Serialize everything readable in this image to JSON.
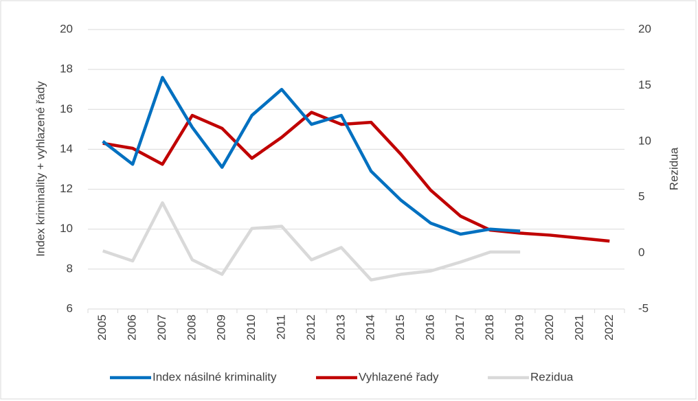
{
  "chart_data": {
    "type": "line",
    "categories": [
      "2005",
      "2006",
      "2007",
      "2008",
      "2009",
      "2010",
      "2011",
      "2012",
      "2013",
      "2014",
      "2015",
      "2016",
      "2017",
      "2018",
      "2019",
      "2020",
      "2021",
      "2022"
    ],
    "series": [
      {
        "name": "Index násilné kriminality",
        "color": "#0070c0",
        "values": [
          14.4,
          13.25,
          17.6,
          15.1,
          13.1,
          15.7,
          17.0,
          15.25,
          15.7,
          12.9,
          11.45,
          10.3,
          9.75,
          10.0,
          9.9,
          null,
          null,
          null
        ]
      },
      {
        "name": "Vyhlazené řady",
        "color": "#c00000",
        "values": [
          14.3,
          14.05,
          13.25,
          15.7,
          15.05,
          13.55,
          14.6,
          15.85,
          15.25,
          15.35,
          13.75,
          11.95,
          10.65,
          9.95,
          9.8,
          9.7,
          9.55,
          9.4
        ]
      },
      {
        "name": "Rezidua",
        "color": "#d9d9d9",
        "axis": "y2",
        "values": [
          0.2,
          -0.7,
          4.5,
          -0.6,
          -1.9,
          2.2,
          2.4,
          -0.6,
          0.5,
          -2.4,
          -1.9,
          -1.6,
          -0.8,
          0.1,
          0.1,
          null,
          null,
          null
        ]
      }
    ],
    "ylabel": "Index kriminality + vyhlazené řady",
    "y2label": "Rezidua",
    "ylim": [
      6,
      20
    ],
    "yticks": [
      6,
      8,
      10,
      12,
      14,
      16,
      18,
      20
    ],
    "y2lim": [
      -5,
      20
    ],
    "y2ticks": [
      -5,
      0,
      5,
      10,
      15,
      20
    ],
    "grid": true,
    "legend": "bottom"
  }
}
